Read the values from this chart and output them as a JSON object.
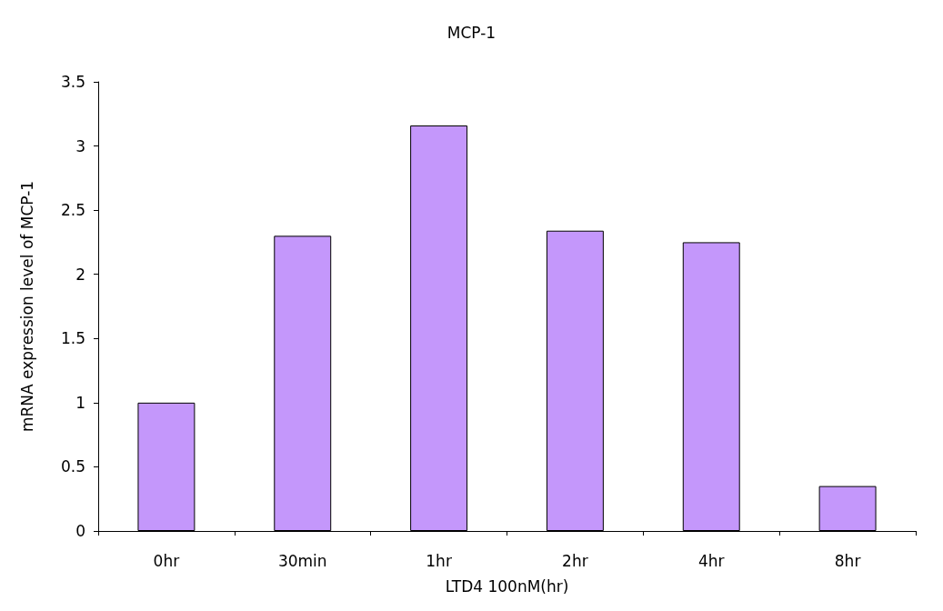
{
  "chart_data": {
    "type": "bar",
    "title": "MCP-1",
    "xlabel": "LTD4 100nM(hr)",
    "ylabel": "mRNA expression level of MCP-1",
    "categories": [
      "0hr",
      "30min",
      "1hr",
      "2hr",
      "4hr",
      "8hr"
    ],
    "values": [
      1.0,
      2.3,
      3.16,
      2.34,
      2.25,
      0.35
    ],
    "color": "#c497fb",
    "ylim": [
      0,
      3.5
    ],
    "yticks": [
      0,
      0.5,
      1,
      1.5,
      2,
      2.5,
      3,
      3.5
    ],
    "grid": false
  }
}
